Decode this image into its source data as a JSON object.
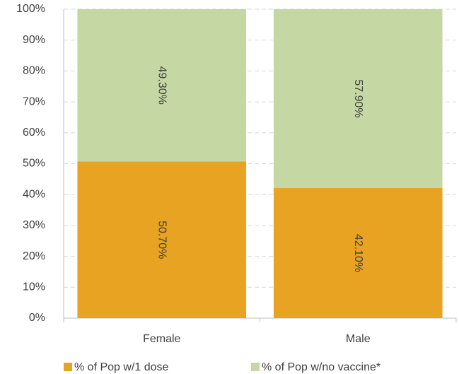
{
  "chart_data": {
    "type": "stacked_bar",
    "categories": [
      "Female",
      "Male"
    ],
    "series": [
      {
        "name": "% of Pop w/1 dose",
        "color": "#e9a323",
        "values": [
          50.7,
          42.1
        ],
        "value_labels": [
          "50.70%",
          "42.10%"
        ]
      },
      {
        "name": "% of Pop w/no vaccine*",
        "color": "#c5d8a4",
        "values": [
          49.3,
          57.9
        ],
        "value_labels": [
          "49.30%",
          "57.90%"
        ]
      }
    ],
    "ylim": [
      0,
      100
    ],
    "yticks": [
      {
        "value": 0,
        "label": "0%"
      },
      {
        "value": 10,
        "label": "10%"
      },
      {
        "value": 20,
        "label": "20%"
      },
      {
        "value": 30,
        "label": "30%"
      },
      {
        "value": 40,
        "label": "40%"
      },
      {
        "value": 50,
        "label": "50%"
      },
      {
        "value": 60,
        "label": "60%"
      },
      {
        "value": 70,
        "label": "70%"
      },
      {
        "value": 80,
        "label": "80%"
      },
      {
        "value": 90,
        "label": "90%"
      },
      {
        "value": 100,
        "label": "100%"
      }
    ],
    "grid": true,
    "legend": "bottom"
  }
}
